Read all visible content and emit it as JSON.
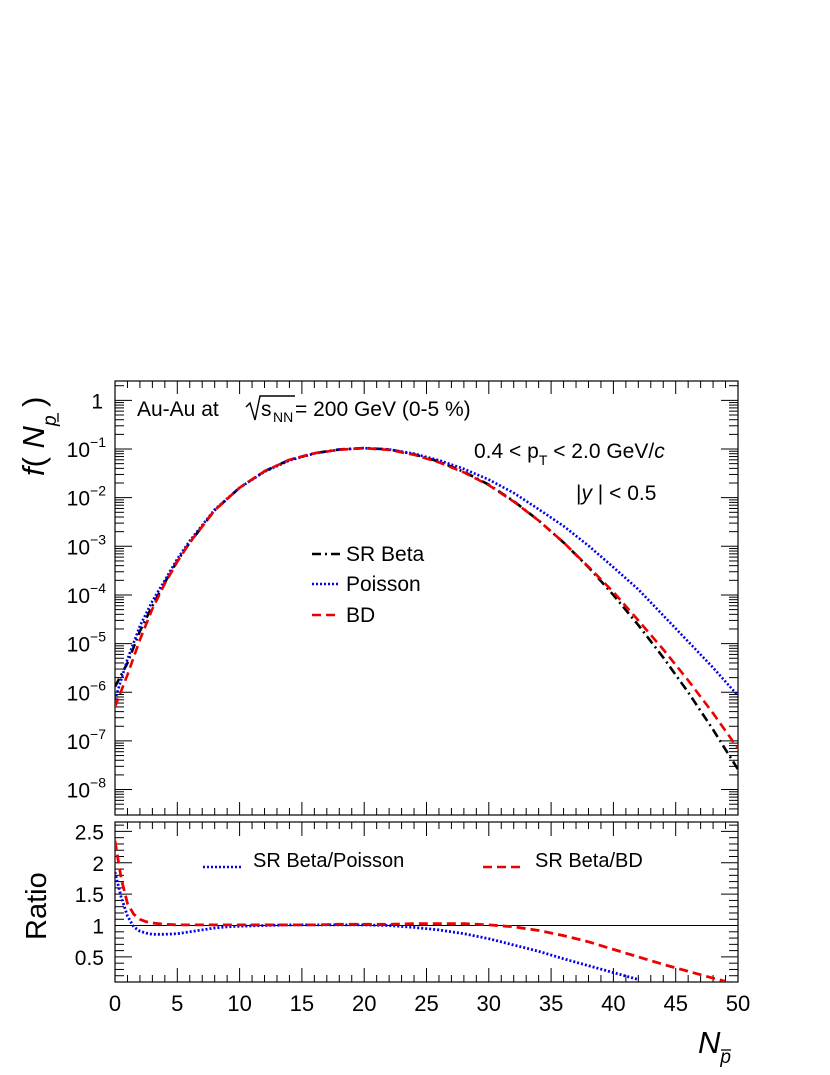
{
  "annotations": {
    "collision_prefix": "Au-Au at ",
    "sqrt_s": "s",
    "sqrt_s_sub": "NN",
    "collision_suffix": " = 200 GeV (0-5 %)",
    "pt_left": "0.4 < p",
    "pt_sub": "T",
    "pt_right": " < 2.0 GeV/",
    "pt_c": "c",
    "y_left": "|",
    "y_var": "y",
    "y_right": " | < 0.5"
  },
  "axes": {
    "ylabel_top_f": "f",
    "ylabel_top_paren_open": "( ",
    "ylabel_top_N": "N",
    "ylabel_top_sub": "p",
    "ylabel_top_paren_close": " )",
    "ylabel_bottom": "Ratio",
    "xlabel_N": "N",
    "xlabel_sub": "p"
  },
  "chart_data": [
    {
      "type": "line",
      "yscale": "log",
      "xlim": [
        0,
        50
      ],
      "ylim": [
        3e-09,
        2.5
      ],
      "yticks": [
        {
          "value": 1,
          "mantissa": "1",
          "exp": ""
        },
        {
          "value": 0.1,
          "mantissa": "10",
          "exp": "−1"
        },
        {
          "value": 0.01,
          "mantissa": "10",
          "exp": "−2"
        },
        {
          "value": 0.001,
          "mantissa": "10",
          "exp": "−3"
        },
        {
          "value": 0.0001,
          "mantissa": "10",
          "exp": "−4"
        },
        {
          "value": 1e-05,
          "mantissa": "10",
          "exp": "−5"
        },
        {
          "value": 1e-06,
          "mantissa": "10",
          "exp": "−6"
        },
        {
          "value": 1e-07,
          "mantissa": "10",
          "exp": "−7"
        },
        {
          "value": 1e-08,
          "mantissa": "10",
          "exp": "−8"
        }
      ],
      "legend": {
        "placement": "center"
      },
      "series": [
        {
          "name": "SR Beta",
          "color": "#000000",
          "style": "dashdot",
          "x": [
            0,
            1,
            2,
            3,
            4,
            5,
            6,
            8,
            10,
            12,
            14,
            16,
            18,
            20,
            22,
            24,
            26,
            28,
            30,
            32,
            34,
            36,
            38,
            40,
            42,
            44,
            46,
            48,
            50
          ],
          "y": [
            1.3e-06,
            4e-06,
            1.8e-05,
            6e-05,
            0.00018,
            0.0005,
            0.0012,
            0.0055,
            0.016,
            0.035,
            0.06,
            0.082,
            0.098,
            0.105,
            0.098,
            0.078,
            0.055,
            0.034,
            0.0185,
            0.0085,
            0.0034,
            0.0012,
            0.00037,
            0.0001,
            2.4e-05,
            5.2e-06,
            1e-06,
            1.7e-07,
            2.6e-08
          ]
        },
        {
          "name": "Poisson",
          "color": "#0000ee",
          "style": "dotted",
          "x": [
            0,
            1,
            2,
            3,
            4,
            5,
            6,
            8,
            10,
            12,
            14,
            16,
            18,
            20,
            22,
            24,
            26,
            28,
            30,
            32,
            34,
            36,
            38,
            40,
            42,
            44,
            46,
            48,
            50
          ],
          "y": [
            7e-07,
            4.8e-06,
            2.3e-05,
            7.5e-05,
            0.0002,
            0.00055,
            0.0013,
            0.0057,
            0.016,
            0.034,
            0.058,
            0.081,
            0.097,
            0.104,
            0.098,
            0.08,
            0.059,
            0.039,
            0.0235,
            0.0125,
            0.0058,
            0.0026,
            0.00103,
            0.00037,
            0.00013,
            3.8e-05,
            1.1e-05,
            3.2e-06,
            8.5e-07
          ]
        },
        {
          "name": "BD",
          "color": "#ee0000",
          "style": "dashed",
          "x": [
            0,
            1,
            2,
            3,
            4,
            5,
            6,
            8,
            10,
            12,
            14,
            16,
            18,
            20,
            22,
            24,
            26,
            28,
            30,
            32,
            34,
            36,
            38,
            40,
            42,
            44,
            46,
            48,
            50
          ],
          "y": [
            5e-07,
            2.3e-06,
            1.2e-05,
            5.2e-05,
            0.00017,
            0.00048,
            0.0012,
            0.0055,
            0.016,
            0.035,
            0.06,
            0.082,
            0.097,
            0.104,
            0.096,
            0.076,
            0.053,
            0.033,
            0.018,
            0.0083,
            0.0034,
            0.0012,
            0.00038,
            0.000115,
            3e-05,
            7.6e-06,
            1.75e-06,
            3.7e-07,
            7e-08
          ]
        }
      ]
    },
    {
      "type": "line",
      "xlim": [
        0,
        50
      ],
      "ylim": [
        0.1,
        2.65
      ],
      "yticks": [
        {
          "value": 0.5,
          "label": "0.5"
        },
        {
          "value": 1,
          "label": "1"
        },
        {
          "value": 1.5,
          "label": "1.5"
        },
        {
          "value": 2,
          "label": "2"
        },
        {
          "value": 2.5,
          "label": "2.5"
        }
      ],
      "xticks": [
        {
          "value": 0,
          "label": "0"
        },
        {
          "value": 5,
          "label": "5"
        },
        {
          "value": 10,
          "label": "10"
        },
        {
          "value": 15,
          "label": "15"
        },
        {
          "value": 20,
          "label": "20"
        },
        {
          "value": 25,
          "label": "25"
        },
        {
          "value": 30,
          "label": "30"
        },
        {
          "value": 35,
          "label": "35"
        },
        {
          "value": 40,
          "label": "40"
        },
        {
          "value": 45,
          "label": "45"
        },
        {
          "value": 50,
          "label": "50"
        }
      ],
      "reference_line": 1,
      "legend": {
        "placement": "top"
      },
      "series": [
        {
          "name": "SR Beta/Poisson",
          "color": "#0000ee",
          "style": "dotted",
          "x": [
            0,
            0.5,
            1,
            1.5,
            2,
            2.5,
            3,
            4,
            5,
            6,
            7,
            8,
            9,
            10,
            12,
            14,
            16,
            18,
            20,
            22,
            24,
            26,
            28,
            30,
            32,
            34,
            36,
            38,
            40,
            42
          ],
          "y": [
            1.85,
            1.45,
            1.15,
            0.98,
            0.91,
            0.88,
            0.86,
            0.86,
            0.87,
            0.9,
            0.93,
            0.96,
            0.98,
            0.99,
            1.0,
            1.01,
            1.01,
            1.01,
            1.01,
            1.0,
            0.97,
            0.93,
            0.87,
            0.79,
            0.69,
            0.59,
            0.47,
            0.36,
            0.25,
            0.14
          ]
        },
        {
          "name": "SR Beta/BD",
          "color": "#ee0000",
          "style": "dashed",
          "x": [
            0,
            0.5,
            1,
            1.5,
            2,
            2.5,
            3,
            4,
            5,
            6,
            8,
            10,
            12,
            14,
            16,
            18,
            20,
            22,
            24,
            26,
            28,
            30,
            32,
            34,
            36,
            38,
            40,
            42,
            44,
            46,
            48,
            49
          ],
          "y": [
            2.35,
            1.75,
            1.35,
            1.18,
            1.1,
            1.06,
            1.04,
            1.02,
            1.01,
            1.01,
            1.01,
            1.01,
            1.01,
            1.01,
            1.01,
            1.02,
            1.02,
            1.02,
            1.03,
            1.03,
            1.03,
            1.01,
            0.98,
            0.92,
            0.84,
            0.74,
            0.62,
            0.5,
            0.38,
            0.27,
            0.16,
            0.11
          ]
        }
      ]
    }
  ]
}
